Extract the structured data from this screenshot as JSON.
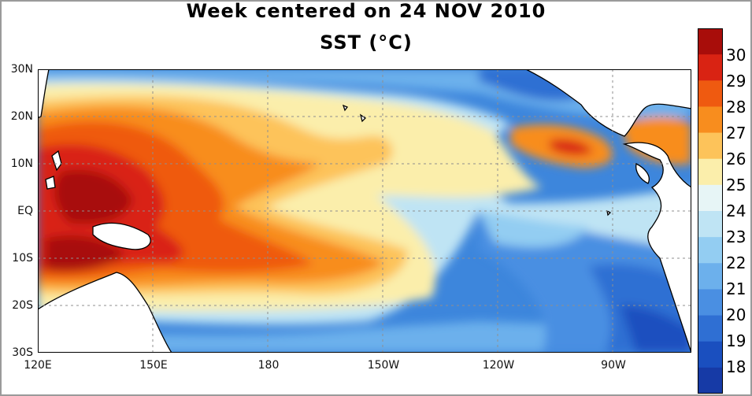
{
  "title": {
    "line1": "Week centered on 24 NOV 2010",
    "line2": "SST (°C)"
  },
  "lat_labels": [
    "30N",
    "20N",
    "10N",
    "EQ",
    "10S",
    "20S",
    "30S"
  ],
  "lon_labels": [
    "120E",
    "150E",
    "180",
    "150W",
    "120W",
    "90W"
  ],
  "colorbar": {
    "labels": [
      "30",
      "29",
      "28",
      "27",
      "26",
      "25",
      "24",
      "23",
      "22",
      "21",
      "20",
      "19",
      "18"
    ],
    "colors": [
      "#a80d0a",
      "#d92313",
      "#ef5a10",
      "#f88d1e",
      "#fdc35a",
      "#fbeeab",
      "#e7f5f6",
      "#bfe4f4",
      "#93cdf2",
      "#6cb0ec",
      "#4a8fe2",
      "#2f6fd3",
      "#1a4fbf",
      "#163aa6"
    ]
  },
  "grid": true,
  "land_color": "#ffffff",
  "coast_color": "#000000"
}
